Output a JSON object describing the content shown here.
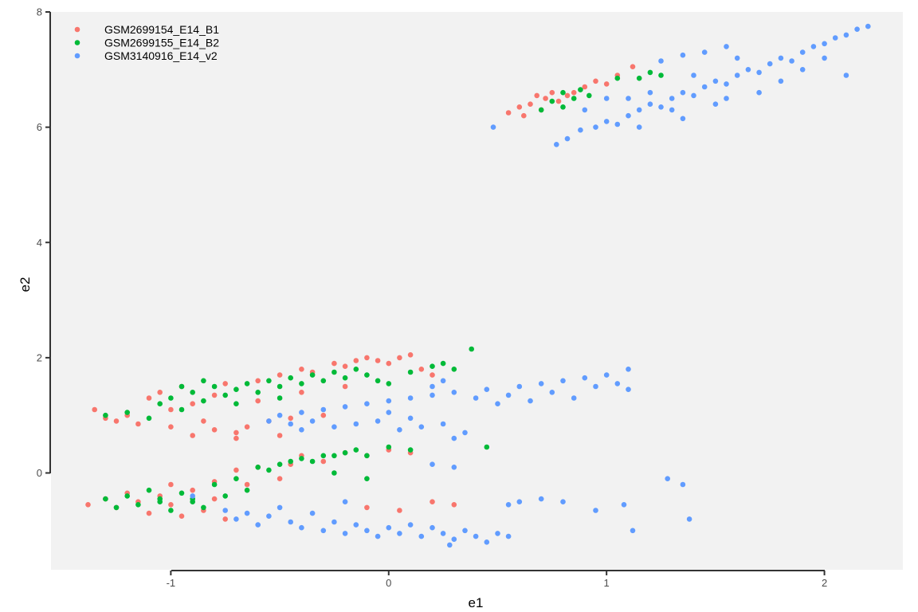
{
  "chart_data": {
    "type": "scatter",
    "title": "",
    "xlabel": "e1",
    "ylabel": "e2",
    "xlim": [
      -1.55,
      2.36
    ],
    "ylim": [
      -1.68,
      8.0
    ],
    "x_ticks": [
      -1,
      0,
      1,
      2
    ],
    "y_ticks": [
      0,
      2,
      4,
      6,
      8
    ],
    "x_tick_labels": [
      "-1",
      "0",
      "1",
      "2"
    ],
    "y_tick_labels": [
      "0",
      "2",
      "4",
      "6",
      "8"
    ],
    "grid": false,
    "legend_position": "top-left",
    "panel_background": "#f2f2f2",
    "series": [
      {
        "name": "GSM2699154_E14_B1",
        "color": "#f8766d",
        "points": [
          [
            0.55,
            6.25
          ],
          [
            0.6,
            6.35
          ],
          [
            0.65,
            6.4
          ],
          [
            0.7,
            6.3
          ],
          [
            0.72,
            6.5
          ],
          [
            0.78,
            6.45
          ],
          [
            0.82,
            6.55
          ],
          [
            0.85,
            6.6
          ],
          [
            0.9,
            6.7
          ],
          [
            0.95,
            6.8
          ],
          [
            1.0,
            6.75
          ],
          [
            1.05,
            6.9
          ],
          [
            1.12,
            7.05
          ],
          [
            0.62,
            6.2
          ],
          [
            0.68,
            6.55
          ],
          [
            0.75,
            6.6
          ],
          [
            -1.35,
            1.1
          ],
          [
            -1.3,
            0.95
          ],
          [
            -1.25,
            0.9
          ],
          [
            -1.2,
            1.0
          ],
          [
            -1.15,
            0.85
          ],
          [
            -1.1,
            1.3
          ],
          [
            -1.05,
            1.4
          ],
          [
            -1.0,
            0.8
          ],
          [
            -0.95,
            1.5
          ],
          [
            -0.9,
            1.2
          ],
          [
            -0.85,
            0.9
          ],
          [
            -0.8,
            0.75
          ],
          [
            -0.75,
            1.55
          ],
          [
            -0.7,
            0.7
          ],
          [
            -0.65,
            0.8
          ],
          [
            -0.6,
            1.6
          ],
          [
            -0.55,
            0.9
          ],
          [
            -0.5,
            1.7
          ],
          [
            -0.45,
            0.95
          ],
          [
            -0.4,
            1.8
          ],
          [
            -0.35,
            1.75
          ],
          [
            -0.3,
            1.0
          ],
          [
            -0.25,
            1.9
          ],
          [
            -0.2,
            1.85
          ],
          [
            -0.15,
            1.95
          ],
          [
            -0.1,
            2.0
          ],
          [
            -0.05,
            1.95
          ],
          [
            0.0,
            1.9
          ],
          [
            0.05,
            2.0
          ],
          [
            0.1,
            2.05
          ],
          [
            0.15,
            1.8
          ],
          [
            0.2,
            1.7
          ],
          [
            -0.9,
            0.65
          ],
          [
            -0.7,
            0.6
          ],
          [
            -0.5,
            0.65
          ],
          [
            -1.0,
            1.1
          ],
          [
            -0.8,
            1.35
          ],
          [
            -0.6,
            1.25
          ],
          [
            -0.4,
            1.4
          ],
          [
            -0.2,
            1.5
          ],
          [
            -1.38,
            -0.55
          ],
          [
            -1.3,
            -0.45
          ],
          [
            -1.25,
            -0.6
          ],
          [
            -1.2,
            -0.35
          ],
          [
            -1.15,
            -0.5
          ],
          [
            -1.1,
            -0.7
          ],
          [
            -1.05,
            -0.4
          ],
          [
            -1.0,
            -0.2
          ],
          [
            -0.95,
            -0.75
          ],
          [
            -0.9,
            -0.3
          ],
          [
            -0.85,
            -0.65
          ],
          [
            -0.8,
            -0.15
          ],
          [
            -0.75,
            -0.8
          ],
          [
            -0.7,
            0.05
          ],
          [
            -0.65,
            -0.2
          ],
          [
            -0.6,
            0.1
          ],
          [
            -0.5,
            -0.1
          ],
          [
            -0.45,
            0.15
          ],
          [
            -0.4,
            0.3
          ],
          [
            -0.3,
            0.2
          ],
          [
            -0.2,
            0.35
          ],
          [
            -0.1,
            0.3
          ],
          [
            0.0,
            0.4
          ],
          [
            0.1,
            0.35
          ],
          [
            0.2,
            -0.5
          ],
          [
            0.3,
            -0.55
          ],
          [
            -0.1,
            -0.6
          ],
          [
            0.05,
            -0.65
          ],
          [
            -0.8,
            -0.45
          ],
          [
            -1.0,
            -0.55
          ]
        ]
      },
      {
        "name": "GSM2699155_E14_B2",
        "color": "#00ba38",
        "points": [
          [
            0.7,
            6.3
          ],
          [
            0.75,
            6.45
          ],
          [
            0.8,
            6.6
          ],
          [
            0.85,
            6.5
          ],
          [
            0.88,
            6.65
          ],
          [
            0.92,
            6.55
          ],
          [
            1.05,
            6.85
          ],
          [
            1.15,
            6.85
          ],
          [
            1.2,
            6.95
          ],
          [
            1.25,
            6.9
          ],
          [
            0.8,
            6.35
          ],
          [
            -1.3,
            1.0
          ],
          [
            -1.2,
            1.05
          ],
          [
            -1.1,
            0.95
          ],
          [
            -1.05,
            1.2
          ],
          [
            -1.0,
            1.3
          ],
          [
            -0.95,
            1.1
          ],
          [
            -0.9,
            1.4
          ],
          [
            -0.85,
            1.25
          ],
          [
            -0.8,
            1.5
          ],
          [
            -0.75,
            1.35
          ],
          [
            -0.7,
            1.45
          ],
          [
            -0.65,
            1.55
          ],
          [
            -0.6,
            1.4
          ],
          [
            -0.55,
            1.6
          ],
          [
            -0.5,
            1.5
          ],
          [
            -0.45,
            1.65
          ],
          [
            -0.4,
            1.55
          ],
          [
            -0.35,
            1.7
          ],
          [
            -0.3,
            1.6
          ],
          [
            -0.25,
            1.75
          ],
          [
            -0.2,
            1.65
          ],
          [
            -0.15,
            1.8
          ],
          [
            -0.1,
            1.7
          ],
          [
            -0.05,
            1.6
          ],
          [
            0.0,
            1.55
          ],
          [
            0.1,
            1.75
          ],
          [
            0.2,
            1.85
          ],
          [
            0.25,
            1.9
          ],
          [
            0.3,
            1.8
          ],
          [
            0.38,
            2.15
          ],
          [
            -0.95,
            1.5
          ],
          [
            -0.85,
            1.6
          ],
          [
            -0.7,
            1.2
          ],
          [
            -0.5,
            1.3
          ],
          [
            -1.3,
            -0.45
          ],
          [
            -1.25,
            -0.6
          ],
          [
            -1.2,
            -0.4
          ],
          [
            -1.15,
            -0.55
          ],
          [
            -1.1,
            -0.3
          ],
          [
            -1.05,
            -0.5
          ],
          [
            -1.0,
            -0.65
          ],
          [
            -0.95,
            -0.35
          ],
          [
            -0.9,
            -0.45
          ],
          [
            -0.85,
            -0.6
          ],
          [
            -0.8,
            -0.2
          ],
          [
            -0.75,
            -0.4
          ],
          [
            -0.7,
            -0.1
          ],
          [
            -0.65,
            -0.3
          ],
          [
            -0.6,
            0.1
          ],
          [
            -0.55,
            0.05
          ],
          [
            -0.5,
            0.15
          ],
          [
            -0.45,
            0.2
          ],
          [
            -0.4,
            0.25
          ],
          [
            -0.35,
            0.2
          ],
          [
            -0.3,
            0.3
          ],
          [
            -0.25,
            0.3
          ],
          [
            -0.2,
            0.35
          ],
          [
            -0.15,
            0.4
          ],
          [
            -0.1,
            0.3
          ],
          [
            0.0,
            0.45
          ],
          [
            0.1,
            0.4
          ],
          [
            -0.25,
            0.0
          ],
          [
            -0.1,
            -0.1
          ],
          [
            0.45,
            0.45
          ],
          [
            -0.9,
            -0.5
          ],
          [
            -1.05,
            -0.45
          ]
        ]
      },
      {
        "name": "GSM3140916_E14_v2",
        "color": "#619cff",
        "points": [
          [
            0.48,
            6.0
          ],
          [
            0.77,
            5.7
          ],
          [
            0.82,
            5.8
          ],
          [
            0.88,
            5.95
          ],
          [
            0.95,
            6.0
          ],
          [
            1.0,
            6.1
          ],
          [
            1.05,
            6.05
          ],
          [
            1.1,
            6.2
          ],
          [
            1.15,
            6.3
          ],
          [
            1.2,
            6.4
          ],
          [
            1.25,
            6.35
          ],
          [
            1.3,
            6.5
          ],
          [
            1.35,
            6.6
          ],
          [
            1.4,
            6.55
          ],
          [
            1.45,
            6.7
          ],
          [
            1.5,
            6.8
          ],
          [
            1.55,
            6.75
          ],
          [
            1.6,
            6.9
          ],
          [
            1.65,
            7.0
          ],
          [
            1.7,
            6.95
          ],
          [
            1.75,
            7.1
          ],
          [
            1.8,
            7.2
          ],
          [
            1.85,
            7.15
          ],
          [
            1.9,
            7.3
          ],
          [
            1.95,
            7.4
          ],
          [
            2.0,
            7.45
          ],
          [
            2.05,
            7.55
          ],
          [
            2.1,
            7.6
          ],
          [
            2.15,
            7.7
          ],
          [
            2.2,
            7.75
          ],
          [
            1.1,
            6.5
          ],
          [
            1.2,
            6.6
          ],
          [
            1.3,
            6.3
          ],
          [
            1.4,
            6.9
          ],
          [
            1.5,
            6.4
          ],
          [
            1.6,
            7.2
          ],
          [
            1.7,
            6.6
          ],
          [
            1.8,
            6.8
          ],
          [
            1.9,
            7.0
          ],
          [
            2.0,
            7.2
          ],
          [
            2.1,
            6.9
          ],
          [
            1.25,
            7.15
          ],
          [
            1.35,
            7.25
          ],
          [
            1.45,
            7.3
          ],
          [
            1.55,
            7.4
          ],
          [
            1.0,
            6.5
          ],
          [
            0.9,
            6.3
          ],
          [
            1.15,
            6.0
          ],
          [
            1.35,
            6.15
          ],
          [
            1.55,
            6.5
          ],
          [
            -0.55,
            0.9
          ],
          [
            -0.5,
            1.0
          ],
          [
            -0.45,
            0.85
          ],
          [
            -0.4,
            1.05
          ],
          [
            -0.35,
            0.9
          ],
          [
            -0.3,
            1.1
          ],
          [
            -0.25,
            0.8
          ],
          [
            -0.2,
            1.15
          ],
          [
            -0.15,
            0.85
          ],
          [
            -0.1,
            1.2
          ],
          [
            -0.05,
            0.9
          ],
          [
            0.0,
            1.25
          ],
          [
            0.05,
            0.75
          ],
          [
            0.1,
            1.3
          ],
          [
            0.15,
            0.8
          ],
          [
            0.2,
            1.35
          ],
          [
            0.25,
            0.85
          ],
          [
            0.3,
            1.4
          ],
          [
            0.35,
            0.7
          ],
          [
            0.4,
            1.3
          ],
          [
            0.45,
            1.45
          ],
          [
            0.5,
            1.2
          ],
          [
            0.55,
            1.35
          ],
          [
            0.6,
            1.5
          ],
          [
            0.65,
            1.25
          ],
          [
            0.7,
            1.55
          ],
          [
            0.75,
            1.4
          ],
          [
            0.8,
            1.6
          ],
          [
            0.85,
            1.3
          ],
          [
            0.9,
            1.65
          ],
          [
            0.95,
            1.5
          ],
          [
            1.0,
            1.7
          ],
          [
            1.05,
            1.55
          ],
          [
            1.1,
            1.8
          ],
          [
            1.1,
            1.45
          ],
          [
            0.2,
            1.5
          ],
          [
            0.25,
            1.6
          ],
          [
            0.0,
            1.05
          ],
          [
            0.1,
            0.95
          ],
          [
            0.3,
            0.6
          ],
          [
            -0.4,
            0.75
          ],
          [
            -0.75,
            -0.65
          ],
          [
            -0.7,
            -0.8
          ],
          [
            -0.65,
            -0.7
          ],
          [
            -0.6,
            -0.9
          ],
          [
            -0.55,
            -0.75
          ],
          [
            -0.5,
            -0.6
          ],
          [
            -0.45,
            -0.85
          ],
          [
            -0.4,
            -0.95
          ],
          [
            -0.35,
            -0.7
          ],
          [
            -0.3,
            -1.0
          ],
          [
            -0.25,
            -0.85
          ],
          [
            -0.2,
            -1.05
          ],
          [
            -0.15,
            -0.9
          ],
          [
            -0.1,
            -1.0
          ],
          [
            -0.05,
            -1.1
          ],
          [
            0.0,
            -0.95
          ],
          [
            0.05,
            -1.05
          ],
          [
            0.1,
            -0.9
          ],
          [
            0.15,
            -1.1
          ],
          [
            0.2,
            -0.95
          ],
          [
            0.25,
            -1.05
          ],
          [
            0.3,
            -1.15
          ],
          [
            0.35,
            -1.0
          ],
          [
            0.4,
            -1.1
          ],
          [
            0.45,
            -1.2
          ],
          [
            0.5,
            -1.05
          ],
          [
            0.55,
            -0.55
          ],
          [
            0.6,
            -0.5
          ],
          [
            0.7,
            -0.45
          ],
          [
            0.8,
            -0.5
          ],
          [
            0.95,
            -0.65
          ],
          [
            1.08,
            -0.55
          ],
          [
            1.12,
            -1.0
          ],
          [
            1.28,
            -0.1
          ],
          [
            1.35,
            -0.2
          ],
          [
            1.38,
            -0.8
          ],
          [
            0.2,
            0.15
          ],
          [
            0.3,
            0.1
          ],
          [
            -0.2,
            -0.5
          ],
          [
            -0.9,
            -0.4
          ],
          [
            0.55,
            -1.1
          ],
          [
            0.28,
            -1.25
          ]
        ]
      }
    ]
  }
}
